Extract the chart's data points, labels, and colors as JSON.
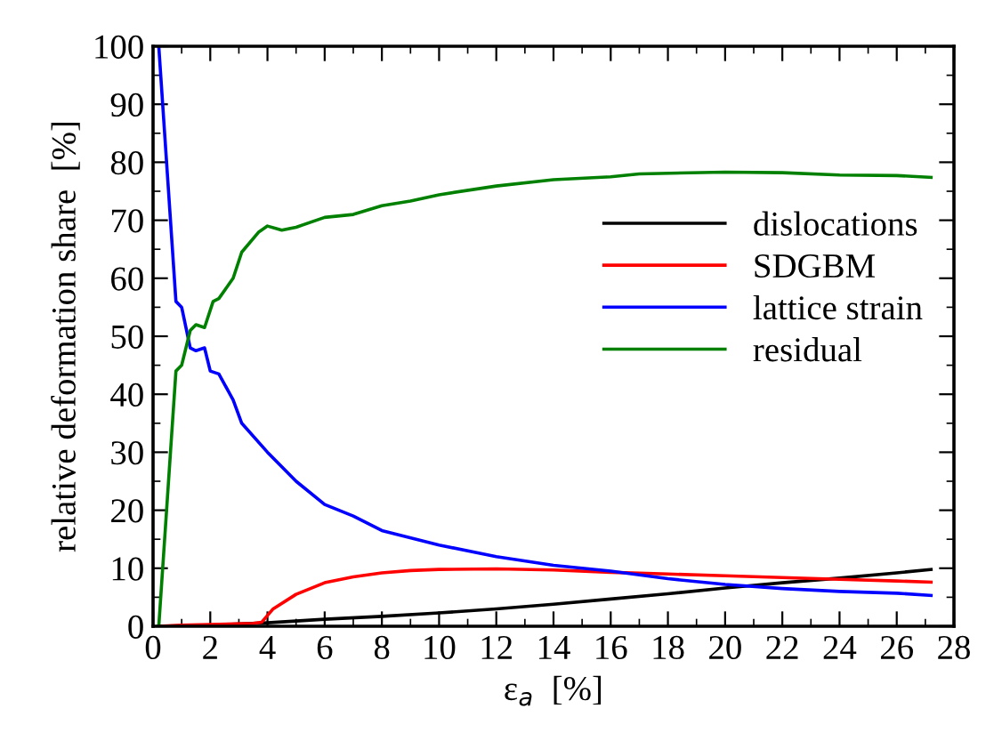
{
  "chart_data": {
    "type": "line",
    "xlabel": "ε$_{a}$  [%]",
    "ylabel": "relative deformation share  [%]",
    "xlim": [
      0,
      28
    ],
    "ylim": [
      0,
      100
    ],
    "xticks": [
      0,
      2,
      4,
      6,
      8,
      10,
      12,
      14,
      16,
      18,
      20,
      22,
      24,
      26,
      28
    ],
    "yticks": [
      0,
      10,
      20,
      30,
      40,
      50,
      60,
      70,
      80,
      90,
      100
    ],
    "grid": false,
    "legend": "right",
    "marker": "none",
    "line_style": "solid",
    "series": [
      {
        "name": "dislocations",
        "color": "#000000",
        "x": [
          0.2,
          2,
          4,
          6,
          8,
          10,
          12,
          14,
          16,
          18,
          20,
          22,
          24,
          26,
          27.2
        ],
        "values": [
          0,
          0.2,
          0.6,
          1.2,
          1.7,
          2.3,
          3,
          3.8,
          4.7,
          5.6,
          6.6,
          7.5,
          8.3,
          9.2,
          9.8
        ]
      },
      {
        "name": "SDGBM",
        "color": "#ff0000",
        "x": [
          0.2,
          1,
          2,
          3.5,
          3.8,
          4.2,
          5,
          6,
          7,
          8,
          9,
          10,
          12,
          14,
          16,
          18,
          20,
          22,
          24,
          26,
          27.2
        ],
        "values": [
          0,
          0.2,
          0.3,
          0.5,
          0.7,
          3,
          5.5,
          7.5,
          8.5,
          9.2,
          9.6,
          9.8,
          9.9,
          9.7,
          9.3,
          9,
          8.7,
          8.4,
          8.1,
          7.8,
          7.6
        ]
      },
      {
        "name": "lattice strain",
        "color": "#0000ff",
        "x": [
          0.2,
          0.5,
          0.8,
          1.0,
          1.3,
          1.5,
          1.8,
          2.0,
          2.3,
          2.8,
          3.1,
          4,
          5,
          6,
          7,
          8,
          10,
          12,
          14,
          16,
          18,
          20,
          22,
          24,
          26,
          27.2
        ],
        "values": [
          100,
          78,
          56,
          55,
          48,
          47.5,
          48,
          44,
          43.5,
          39,
          35,
          30,
          25,
          21,
          19,
          16.5,
          14,
          12,
          10.5,
          9.5,
          8.2,
          7.2,
          6.5,
          6,
          5.7,
          5.3
        ]
      },
      {
        "name": "residual",
        "color": "#008000",
        "x": [
          0.2,
          0.8,
          1.0,
          1.3,
          1.5,
          1.8,
          2.1,
          2.3,
          2.8,
          3.1,
          3.7,
          4.0,
          4.5,
          5,
          6,
          7,
          8,
          9,
          10,
          12,
          14,
          16,
          17,
          20,
          22,
          24,
          26,
          27.2
        ],
        "values": [
          0,
          44,
          45,
          51,
          52,
          51.5,
          56,
          56.5,
          60,
          64.5,
          68,
          69,
          68.3,
          68.8,
          70.5,
          71,
          72.5,
          73.3,
          74.4,
          75.9,
          77,
          77.5,
          78,
          78.3,
          78.2,
          77.8,
          77.7,
          77.4
        ]
      }
    ]
  }
}
